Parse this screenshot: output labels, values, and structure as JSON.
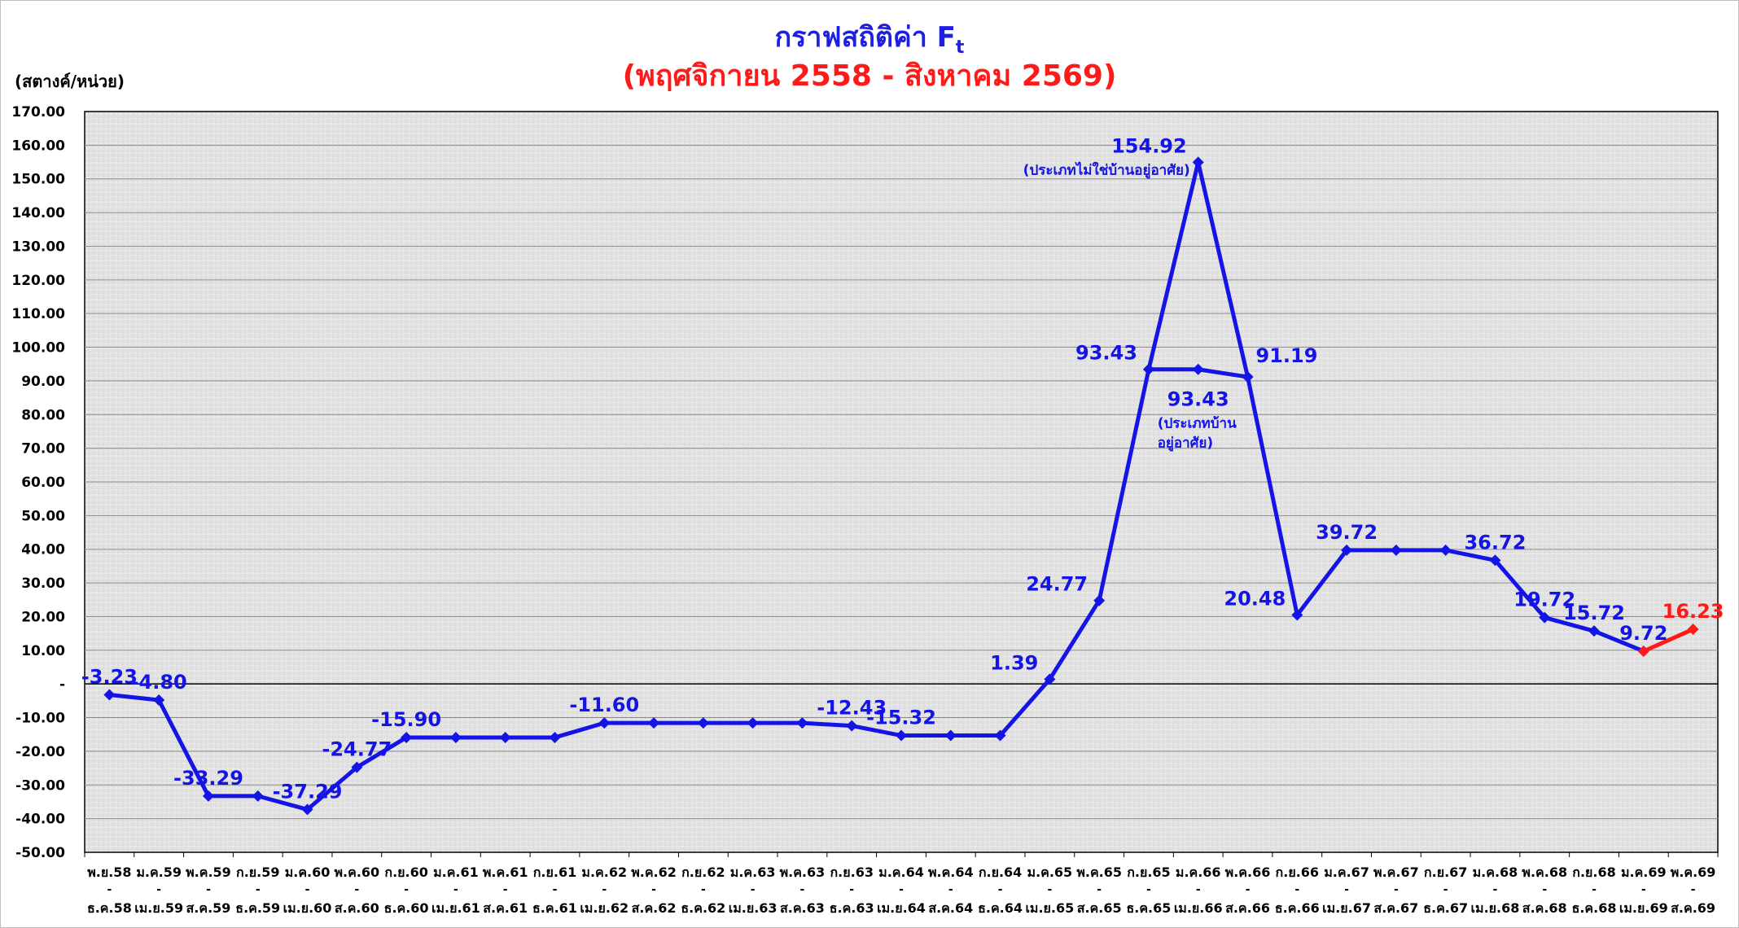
{
  "chart_data": {
    "type": "line",
    "title_main": "กราฟสถิติค่า F",
    "title_sub": "t",
    "subtitle": "(พฤศจิกายน 2558 - สิงหาคม 2569)",
    "ylabel": "(สตางค์/หน่วย)",
    "ylim": [
      -50,
      170
    ],
    "yticks": [
      "170.00",
      "160.00",
      "150.00",
      "140.00",
      "130.00",
      "120.00",
      "110.00",
      "100.00",
      "90.00",
      "80.00",
      "70.00",
      "60.00",
      "50.00",
      "40.00",
      "30.00",
      "20.00",
      "10.00",
      "-",
      "-10.00",
      "-20.00",
      "-30.00",
      "-40.00",
      "-50.00"
    ],
    "categories": [
      [
        "พ.ย.58",
        "ธ.ค.58"
      ],
      [
        "ม.ค.59",
        "เม.ย.59"
      ],
      [
        "พ.ค.59",
        "ส.ค.59"
      ],
      [
        "ก.ย.59",
        "ธ.ค.59"
      ],
      [
        "ม.ค.60",
        "เม.ย.60"
      ],
      [
        "พ.ค.60",
        "ส.ค.60"
      ],
      [
        "ก.ย.60",
        "ธ.ค.60"
      ],
      [
        "ม.ค.61",
        "เม.ย.61"
      ],
      [
        "พ.ค.61",
        "ส.ค.61"
      ],
      [
        "ก.ย.61",
        "ธ.ค.61"
      ],
      [
        "ม.ค.62",
        "เม.ย.62"
      ],
      [
        "พ.ค.62",
        "ส.ค.62"
      ],
      [
        "ก.ย.62",
        "ธ.ค.62"
      ],
      [
        "ม.ค.63",
        "เม.ย.63"
      ],
      [
        "พ.ค.63",
        "ส.ค.63"
      ],
      [
        "ก.ย.63",
        "ธ.ค.63"
      ],
      [
        "ม.ค.64",
        "เม.ย.64"
      ],
      [
        "พ.ค.64",
        "ส.ค.64"
      ],
      [
        "ก.ย.64",
        "ธ.ค.64"
      ],
      [
        "ม.ค.65",
        "เม.ย.65"
      ],
      [
        "พ.ค.65",
        "ส.ค.65"
      ],
      [
        "ก.ย.65",
        "ธ.ค.65"
      ],
      [
        "ม.ค.66",
        "เม.ย.66"
      ],
      [
        "พ.ค.66",
        "ส.ค.66"
      ],
      [
        "ก.ย.66",
        "ธ.ค.66"
      ],
      [
        "ม.ค.67",
        "เม.ย.67"
      ],
      [
        "พ.ค.67",
        "ส.ค.67"
      ],
      [
        "ก.ย.67",
        "ธ.ค.67"
      ],
      [
        "ม.ค.68",
        "เม.ย.68"
      ],
      [
        "พ.ค.68",
        "ส.ค.68"
      ],
      [
        "ก.ย.68",
        "ธ.ค.68"
      ],
      [
        "ม.ค.69",
        "เม.ย.69"
      ],
      [
        "พ.ค.69",
        "ส.ค.69"
      ]
    ],
    "series": [
      {
        "color": "#1414e6",
        "values": [
          -3.23,
          -4.8,
          -33.29,
          -33.29,
          -37.29,
          -24.77,
          -15.9,
          -15.9,
          -15.9,
          -15.9,
          -11.6,
          -11.6,
          -11.6,
          -11.6,
          -11.6,
          -12.43,
          -15.32,
          -15.32,
          -15.32,
          1.39,
          24.77,
          93.43,
          93.43,
          91.19,
          20.48,
          39.72,
          39.72,
          39.72,
          36.72,
          19.72,
          15.72,
          9.72,
          null
        ]
      },
      {
        "color": "#1414e6",
        "values": [
          null,
          null,
          null,
          null,
          null,
          null,
          null,
          null,
          null,
          null,
          null,
          null,
          null,
          null,
          null,
          null,
          null,
          null,
          null,
          null,
          null,
          93.43,
          154.92,
          91.19,
          null,
          null,
          null,
          null,
          null,
          null,
          null,
          null,
          null
        ]
      },
      {
        "color": "#ff1a1a",
        "values": [
          null,
          null,
          null,
          null,
          null,
          null,
          null,
          null,
          null,
          null,
          null,
          null,
          null,
          null,
          null,
          null,
          null,
          null,
          null,
          null,
          null,
          null,
          null,
          null,
          null,
          null,
          null,
          null,
          null,
          null,
          null,
          9.72,
          16.23
        ]
      }
    ],
    "data_labels": [
      {
        "i": 0,
        "v": -3.23,
        "text": "-3.23",
        "color": "#1414e6",
        "pos": "above"
      },
      {
        "i": 1,
        "v": -4.8,
        "text": "-4.80",
        "color": "#1414e6",
        "pos": "above"
      },
      {
        "i": 2,
        "v": -33.29,
        "text": "-33.29",
        "color": "#1414e6",
        "pos": "above"
      },
      {
        "i": 4,
        "v": -37.29,
        "text": "-37.29",
        "color": "#1414e6",
        "pos": "above"
      },
      {
        "i": 5,
        "v": -24.77,
        "text": "-24.77",
        "color": "#1414e6",
        "pos": "above"
      },
      {
        "i": 6,
        "v": -15.9,
        "text": "-15.90",
        "color": "#1414e6",
        "pos": "above"
      },
      {
        "i": 10,
        "v": -11.6,
        "text": "-11.60",
        "color": "#1414e6",
        "pos": "above"
      },
      {
        "i": 15,
        "v": -12.43,
        "text": "-12.43",
        "color": "#1414e6",
        "pos": "above"
      },
      {
        "i": 16,
        "v": -15.32,
        "text": "-15.32",
        "color": "#1414e6",
        "pos": "above"
      },
      {
        "i": 19,
        "v": 1.39,
        "text": "1.39",
        "color": "#1414e6",
        "pos": "left"
      },
      {
        "i": 20,
        "v": 24.77,
        "text": "24.77",
        "color": "#1414e6",
        "pos": "left"
      },
      {
        "i": 21,
        "v": 93.43,
        "text": "93.43",
        "color": "#1414e6",
        "pos": "left"
      },
      {
        "i": 22,
        "v": 154.92,
        "text": "154.92",
        "color": "#1414e6",
        "pos": "left"
      },
      {
        "i": 22,
        "v": 93.43,
        "text": "93.43",
        "color": "#1414e6",
        "pos": "below"
      },
      {
        "i": 23,
        "v": 91.19,
        "text": "91.19",
        "color": "#1414e6",
        "pos": "right"
      },
      {
        "i": 24,
        "v": 20.48,
        "text": "20.48",
        "color": "#1414e6",
        "pos": "left"
      },
      {
        "i": 25,
        "v": 39.72,
        "text": "39.72",
        "color": "#1414e6",
        "pos": "above"
      },
      {
        "i": 28,
        "v": 36.72,
        "text": "36.72",
        "color": "#1414e6",
        "pos": "above"
      },
      {
        "i": 29,
        "v": 19.72,
        "text": "19.72",
        "color": "#1414e6",
        "pos": "above"
      },
      {
        "i": 30,
        "v": 15.72,
        "text": "15.72",
        "color": "#1414e6",
        "pos": "above"
      },
      {
        "i": 31,
        "v": 9.72,
        "text": "9.72",
        "color": "#1414e6",
        "pos": "above"
      },
      {
        "i": 32,
        "v": 16.23,
        "text": "16.23",
        "color": "#ff1a1a",
        "pos": "above"
      }
    ],
    "annotations": [
      {
        "i": 22,
        "v": 154.92,
        "text": "(ประเภทไม่ใช่บ้านอยู่อาศัย)",
        "pos": "left"
      },
      {
        "i": 22,
        "v": 93.43,
        "lines": [
          "(ประเภทบ้าน",
          "อยู่อาศัย)"
        ],
        "pos": "below"
      }
    ],
    "grid": true,
    "legend": "none",
    "background_color": "#e6e6e6"
  }
}
